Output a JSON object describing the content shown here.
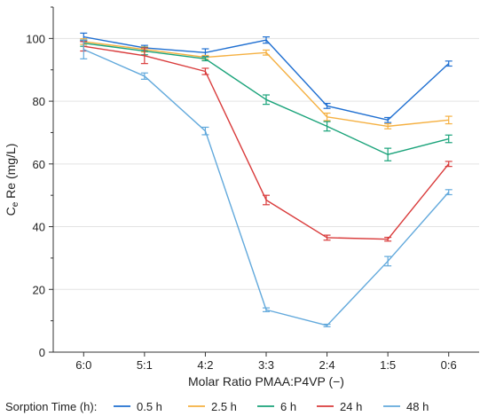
{
  "chart_data": {
    "type": "line",
    "xlabel": "Molar Ratio PMAA:P4VP (−)",
    "ylabel_main": "C",
    "ylabel_sub": "e",
    "ylabel_rest": " Re (mg/L)",
    "categories": [
      "6:0",
      "5:1",
      "4:2",
      "3:3",
      "2:4",
      "1:5",
      "0:6"
    ],
    "ylim": [
      0,
      110
    ],
    "yticks": [
      "0",
      "20",
      "40",
      "60",
      "80",
      "100"
    ],
    "grid": "horizontal",
    "legend_position": "bottom",
    "legend_title": "Sorption Time (h):",
    "series": [
      {
        "name": "0.5 h",
        "color": "#1f6fd1",
        "values": [
          100.5,
          97.0,
          95.5,
          99.5,
          78.5,
          74.0,
          92.0
        ],
        "errors": [
          1.2,
          0.8,
          1.2,
          1.0,
          0.8,
          0.8,
          0.8
        ]
      },
      {
        "name": "2.5 h",
        "color": "#f5b041",
        "values": [
          99.0,
          96.5,
          94.0,
          95.5,
          75.0,
          72.0,
          74.0
        ],
        "errors": [
          0.9,
          0.8,
          0.6,
          0.8,
          1.2,
          0.8,
          1.2
        ]
      },
      {
        "name": "6 h",
        "color": "#1aa37a",
        "values": [
          98.5,
          96.0,
          93.5,
          80.5,
          72.0,
          63.0,
          68.0
        ],
        "errors": [
          1.0,
          1.2,
          0.6,
          1.5,
          1.5,
          2.0,
          1.2
        ]
      },
      {
        "name": "24 h",
        "color": "#d93b3b",
        "values": [
          97.5,
          94.5,
          89.5,
          48.5,
          36.5,
          36.0,
          60.0
        ],
        "errors": [
          1.5,
          2.5,
          1.0,
          1.5,
          0.8,
          0.6,
          0.8
        ]
      },
      {
        "name": "48 h",
        "color": "#62a9dc",
        "values": [
          96.5,
          88.0,
          70.5,
          13.5,
          8.5,
          29.0,
          51.0
        ],
        "errors": [
          3.0,
          1.0,
          1.2,
          0.6,
          0.4,
          1.5,
          0.8
        ]
      }
    ]
  }
}
